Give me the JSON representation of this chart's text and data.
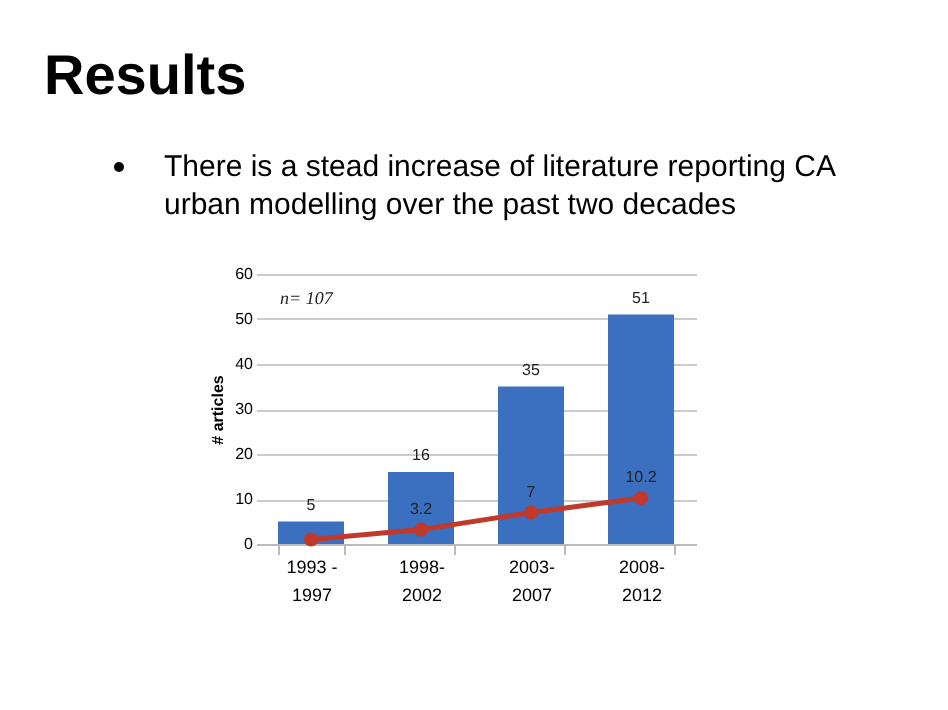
{
  "chart_data": {
    "type": "bar",
    "title": "Results",
    "subtitle": "There is a stead increase of literature reporting CA urban modelling over the past two decades",
    "ylabel": "# articles",
    "categories": [
      "1993 -\n1997",
      "1998-\n2002",
      "2003-\n2007",
      "2008-\n2012"
    ],
    "series": [
      {
        "color": "#3b6fbf",
        "values": [
          5,
          16,
          35,
          51
        ],
        "value_labels": [
          "5",
          "16",
          "35",
          "51"
        ]
      },
      {
        "type": "line",
        "color": "#c0392b",
        "values": [
          1,
          3.2,
          7,
          10.2
        ],
        "value_labels": [
          null,
          "3.2",
          "7",
          "10.2"
        ]
      }
    ],
    "ylim": [
      0,
      60
    ],
    "yticks": [
      0,
      10,
      20,
      30,
      40,
      50,
      60
    ],
    "grid": "y",
    "marker": "circle",
    "annotations": [
      "n= 107"
    ]
  }
}
